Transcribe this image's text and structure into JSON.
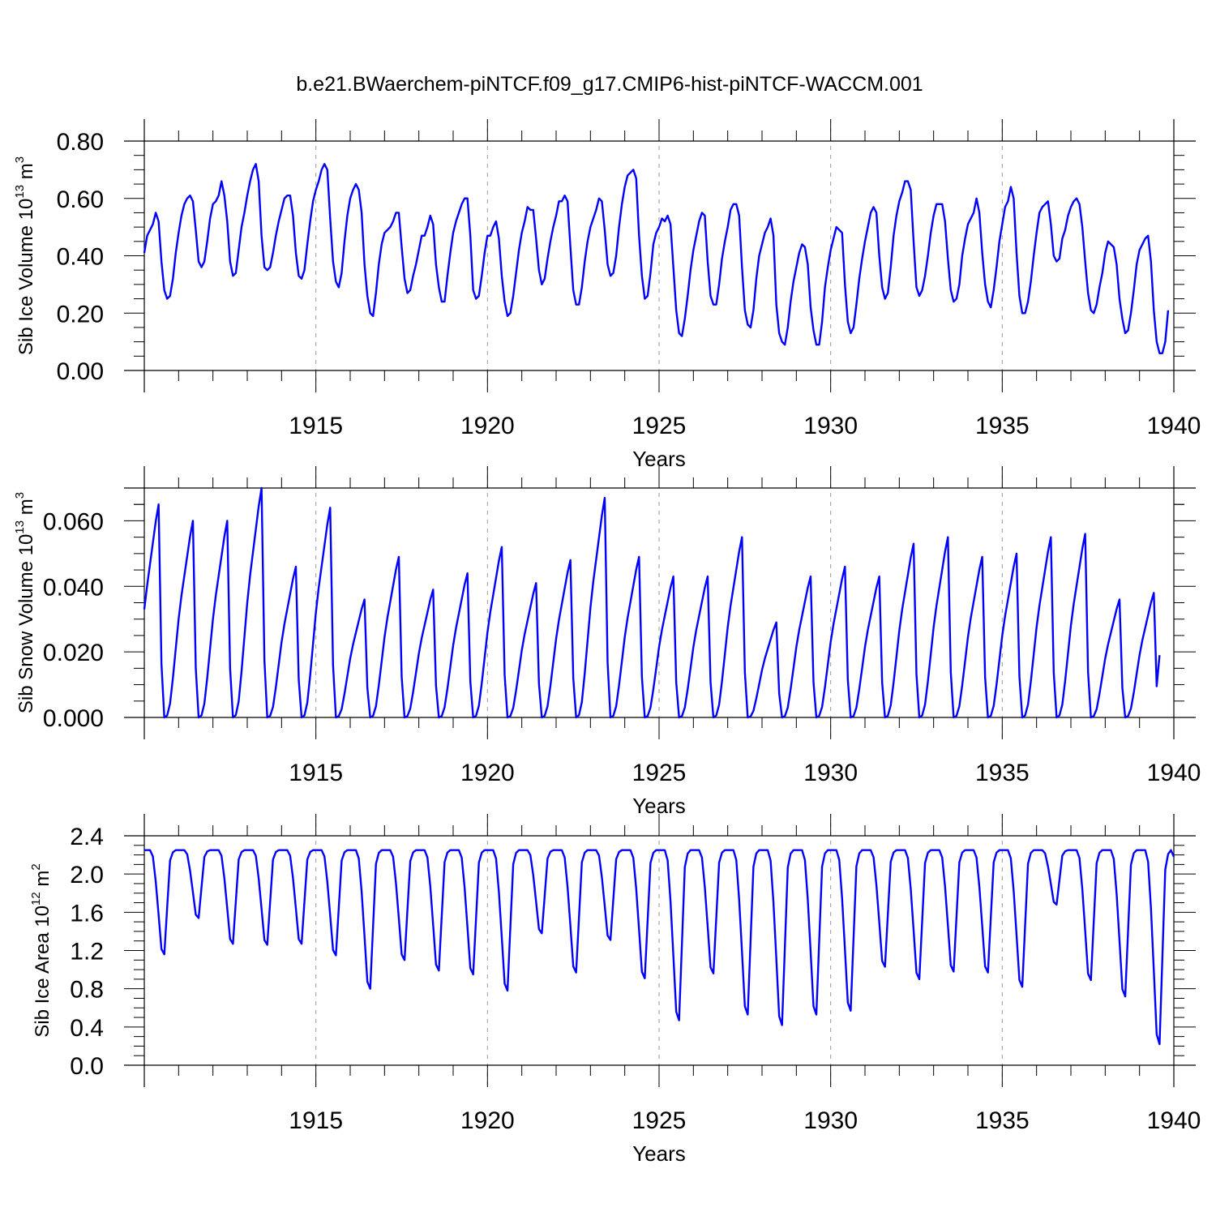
{
  "title": "b.e21.BWaerchem-piNTCF.f09_g17.CMIP6-hist-piNTCF-WACCM.001",
  "colors": {
    "line": "#0000ff",
    "axis": "#000000",
    "grid": "#999999"
  },
  "chart_data": [
    {
      "type": "line",
      "ylabel_main": "Sib Ice Volume 10",
      "ylabel_exp": "13",
      "ylabel_unit": " m",
      "ylabel_unit_exp": "3",
      "xlabel": "Years",
      "xlim": [
        1910.0,
        1940.0
      ],
      "ylim": [
        0.0,
        0.8
      ],
      "xticks": [
        1915,
        1920,
        1925,
        1930,
        1935,
        1940
      ],
      "xtick_labels": [
        "1915",
        "1920",
        "1925",
        "1930",
        "1935",
        "1940"
      ],
      "yticks": [
        0.0,
        0.2,
        0.4,
        0.6,
        0.8
      ],
      "ytick_labels": [
        "0.00",
        "0.20",
        "0.40",
        "0.60",
        "0.80"
      ],
      "series": [
        {
          "name": "Sib Ice Volume",
          "x_start": 1910.0,
          "x_step": 0.083333,
          "values": [
            0.41,
            0.47,
            0.49,
            0.51,
            0.55,
            0.52,
            0.38,
            0.28,
            0.25,
            0.26,
            0.32,
            0.41,
            0.48,
            0.54,
            0.58,
            0.6,
            0.61,
            0.59,
            0.49,
            0.38,
            0.36,
            0.38,
            0.45,
            0.53,
            0.58,
            0.59,
            0.61,
            0.66,
            0.61,
            0.52,
            0.38,
            0.33,
            0.34,
            0.42,
            0.5,
            0.55,
            0.61,
            0.66,
            0.7,
            0.72,
            0.66,
            0.47,
            0.36,
            0.35,
            0.36,
            0.41,
            0.47,
            0.52,
            0.56,
            0.6,
            0.61,
            0.61,
            0.54,
            0.41,
            0.33,
            0.32,
            0.35,
            0.44,
            0.52,
            0.59,
            0.63,
            0.66,
            0.7,
            0.72,
            0.7,
            0.53,
            0.38,
            0.31,
            0.29,
            0.34,
            0.45,
            0.54,
            0.6,
            0.63,
            0.65,
            0.63,
            0.55,
            0.37,
            0.26,
            0.2,
            0.19,
            0.27,
            0.37,
            0.44,
            0.48,
            0.49,
            0.5,
            0.52,
            0.55,
            0.55,
            0.43,
            0.32,
            0.27,
            0.28,
            0.33,
            0.37,
            0.42,
            0.47,
            0.47,
            0.5,
            0.54,
            0.51,
            0.37,
            0.29,
            0.24,
            0.24,
            0.33,
            0.41,
            0.48,
            0.52,
            0.55,
            0.58,
            0.6,
            0.6,
            0.47,
            0.28,
            0.25,
            0.26,
            0.33,
            0.41,
            0.47,
            0.47,
            0.5,
            0.52,
            0.46,
            0.33,
            0.24,
            0.19,
            0.2,
            0.26,
            0.34,
            0.42,
            0.48,
            0.52,
            0.57,
            0.56,
            0.56,
            0.46,
            0.35,
            0.3,
            0.32,
            0.39,
            0.45,
            0.5,
            0.54,
            0.59,
            0.59,
            0.61,
            0.59,
            0.43,
            0.28,
            0.23,
            0.23,
            0.29,
            0.38,
            0.45,
            0.5,
            0.53,
            0.56,
            0.6,
            0.59,
            0.49,
            0.37,
            0.33,
            0.34,
            0.4,
            0.5,
            0.58,
            0.64,
            0.68,
            0.69,
            0.7,
            0.67,
            0.47,
            0.33,
            0.25,
            0.26,
            0.34,
            0.44,
            0.48,
            0.5,
            0.53,
            0.52,
            0.54,
            0.51,
            0.36,
            0.21,
            0.13,
            0.12,
            0.18,
            0.26,
            0.35,
            0.42,
            0.47,
            0.52,
            0.55,
            0.54,
            0.38,
            0.26,
            0.23,
            0.23,
            0.3,
            0.39,
            0.45,
            0.5,
            0.56,
            0.58,
            0.58,
            0.54,
            0.36,
            0.21,
            0.16,
            0.15,
            0.21,
            0.32,
            0.4,
            0.44,
            0.48,
            0.5,
            0.53,
            0.47,
            0.23,
            0.13,
            0.1,
            0.09,
            0.15,
            0.24,
            0.31,
            0.36,
            0.41,
            0.44,
            0.43,
            0.37,
            0.22,
            0.14,
            0.09,
            0.09,
            0.17,
            0.29,
            0.36,
            0.42,
            0.46,
            0.5,
            0.49,
            0.48,
            0.3,
            0.17,
            0.13,
            0.15,
            0.23,
            0.32,
            0.39,
            0.45,
            0.5,
            0.55,
            0.57,
            0.55,
            0.4,
            0.29,
            0.25,
            0.27,
            0.36,
            0.47,
            0.54,
            0.59,
            0.62,
            0.66,
            0.66,
            0.63,
            0.45,
            0.29,
            0.26,
            0.28,
            0.33,
            0.4,
            0.48,
            0.54,
            0.58,
            0.58,
            0.58,
            0.52,
            0.39,
            0.28,
            0.24,
            0.25,
            0.3,
            0.4,
            0.46,
            0.51,
            0.53,
            0.55,
            0.6,
            0.55,
            0.41,
            0.3,
            0.24,
            0.22,
            0.28,
            0.36,
            0.45,
            0.51,
            0.57,
            0.59,
            0.64,
            0.6,
            0.41,
            0.26,
            0.2,
            0.2,
            0.24,
            0.31,
            0.4,
            0.48,
            0.55,
            0.57,
            0.58,
            0.59,
            0.51,
            0.4,
            0.38,
            0.39,
            0.46,
            0.49,
            0.54,
            0.57,
            0.59,
            0.6,
            0.58,
            0.5,
            0.38,
            0.27,
            0.21,
            0.2,
            0.23,
            0.29,
            0.34,
            0.41,
            0.45,
            0.44,
            0.43,
            0.37,
            0.25,
            0.18,
            0.13,
            0.14,
            0.2,
            0.28,
            0.37,
            0.42,
            0.44,
            0.46,
            0.47,
            0.38,
            0.21,
            0.1,
            0.06,
            0.06,
            0.1,
            0.21
          ]
        }
      ]
    },
    {
      "type": "line",
      "ylabel_main": "Sib Snow Volume 10",
      "ylabel_exp": "13",
      "ylabel_unit": " m",
      "ylabel_unit_exp": "3",
      "xlabel": "Years",
      "xlim": [
        1910.0,
        1940.0
      ],
      "ylim": [
        0.0,
        0.07
      ],
      "xticks": [
        1915,
        1920,
        1925,
        1930,
        1935,
        1940
      ],
      "xtick_labels": [
        "1915",
        "1920",
        "1925",
        "1930",
        "1935",
        "1940"
      ],
      "yticks": [
        0.0,
        0.02,
        0.04,
        0.06
      ],
      "ytick_labels": [
        "0.000",
        "0.020",
        "0.040",
        "0.060"
      ],
      "series": [
        {
          "name": "Sib Snow Volume",
          "x_start": 1910.0,
          "x_step": 0.083333,
          "peaks": [
            {
              "year": 1910,
              "value": 0.065
            },
            {
              "year": 1911,
              "value": 0.06
            },
            {
              "year": 1912,
              "value": 0.06
            },
            {
              "year": 1913,
              "value": 0.07
            },
            {
              "year": 1914,
              "value": 0.046
            },
            {
              "year": 1915,
              "value": 0.064
            },
            {
              "year": 1916,
              "value": 0.036
            },
            {
              "year": 1917,
              "value": 0.049
            },
            {
              "year": 1918,
              "value": 0.039
            },
            {
              "year": 1919,
              "value": 0.044
            },
            {
              "year": 1920,
              "value": 0.052
            },
            {
              "year": 1921,
              "value": 0.041
            },
            {
              "year": 1922,
              "value": 0.048
            },
            {
              "year": 1923,
              "value": 0.067
            },
            {
              "year": 1924,
              "value": 0.049
            },
            {
              "year": 1925,
              "value": 0.043
            },
            {
              "year": 1926,
              "value": 0.043
            },
            {
              "year": 1927,
              "value": 0.055
            },
            {
              "year": 1928,
              "value": 0.029
            },
            {
              "year": 1929,
              "value": 0.043
            },
            {
              "year": 1930,
              "value": 0.046
            },
            {
              "year": 1931,
              "value": 0.043
            },
            {
              "year": 1932,
              "value": 0.053
            },
            {
              "year": 1933,
              "value": 0.055
            },
            {
              "year": 1934,
              "value": 0.049
            },
            {
              "year": 1935,
              "value": 0.05
            },
            {
              "year": 1936,
              "value": 0.055
            },
            {
              "year": 1937,
              "value": 0.056
            },
            {
              "year": 1938,
              "value": 0.036
            },
            {
              "year": 1939,
              "value": 0.038
            }
          ],
          "first_value": 0.033,
          "last_value": 0.019
        }
      ]
    },
    {
      "type": "line",
      "ylabel_main": "Sib Ice Area 10",
      "ylabel_exp": "12",
      "ylabel_unit": " m",
      "ylabel_unit_exp": "2",
      "xlabel": "Years",
      "xlim": [
        1910.0,
        1940.0
      ],
      "ylim": [
        0.0,
        2.4
      ],
      "xticks": [
        1915,
        1920,
        1925,
        1930,
        1935,
        1940
      ],
      "xtick_labels": [
        "1915",
        "1920",
        "1925",
        "1930",
        "1935",
        "1940"
      ],
      "yticks": [
        0.0,
        0.4,
        0.8,
        1.2,
        1.6,
        2.0,
        2.4
      ],
      "ytick_labels": [
        "0.0",
        "0.4",
        "0.8",
        "1.2",
        "1.6",
        "2.0",
        "2.4"
      ],
      "series": [
        {
          "name": "Sib Ice Area",
          "x_start": 1910.0,
          "x_step": 0.083333,
          "max_value": 2.25,
          "minima": [
            {
              "year": 1910,
              "value": 1.16
            },
            {
              "year": 1911,
              "value": 1.54
            },
            {
              "year": 1912,
              "value": 1.27
            },
            {
              "year": 1913,
              "value": 1.26
            },
            {
              "year": 1914,
              "value": 1.27
            },
            {
              "year": 1915,
              "value": 1.15
            },
            {
              "year": 1916,
              "value": 0.8
            },
            {
              "year": 1917,
              "value": 1.1
            },
            {
              "year": 1918,
              "value": 0.99
            },
            {
              "year": 1919,
              "value": 0.95
            },
            {
              "year": 1920,
              "value": 0.78
            },
            {
              "year": 1921,
              "value": 1.38
            },
            {
              "year": 1922,
              "value": 0.97
            },
            {
              "year": 1923,
              "value": 1.31
            },
            {
              "year": 1924,
              "value": 0.91
            },
            {
              "year": 1925,
              "value": 0.47
            },
            {
              "year": 1926,
              "value": 0.96
            },
            {
              "year": 1927,
              "value": 0.53
            },
            {
              "year": 1928,
              "value": 0.42
            },
            {
              "year": 1929,
              "value": 0.53
            },
            {
              "year": 1930,
              "value": 0.57
            },
            {
              "year": 1931,
              "value": 1.03
            },
            {
              "year": 1932,
              "value": 0.9
            },
            {
              "year": 1933,
              "value": 0.98
            },
            {
              "year": 1934,
              "value": 0.97
            },
            {
              "year": 1935,
              "value": 0.82
            },
            {
              "year": 1936,
              "value": 1.68
            },
            {
              "year": 1937,
              "value": 0.89
            },
            {
              "year": 1938,
              "value": 0.72
            },
            {
              "year": 1939,
              "value": 0.22
            }
          ],
          "first_value": 2.25,
          "last_value": 2.18
        }
      ]
    }
  ]
}
